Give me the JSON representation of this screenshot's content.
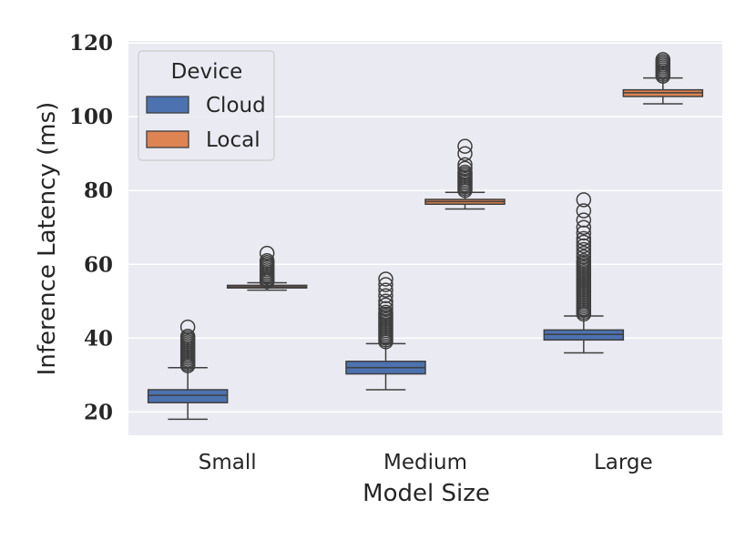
{
  "chart_data": {
    "type": "box",
    "xlabel": "Model Size",
    "ylabel": "Inference Latency (ms)",
    "ylim": [
      13,
      120
    ],
    "yticks": [
      20,
      40,
      60,
      80,
      100,
      120
    ],
    "categories": [
      "Small",
      "Medium",
      "Large"
    ],
    "grid": true,
    "legend": {
      "title": "Device",
      "placement": "top-left"
    },
    "series": [
      {
        "name": "Cloud",
        "color": "#4c72b0",
        "boxes": [
          {
            "category": "Small",
            "whisker_low": 18,
            "q1": 22.5,
            "median": 24.5,
            "q3": 26,
            "whisker_high": 32,
            "outliers": [
              32.5,
              33,
              33.5,
              34,
              34.5,
              35,
              35.5,
              36,
              36.5,
              37,
              37.5,
              38,
              38.5,
              39,
              39.5,
              40,
              40.5,
              43
            ]
          },
          {
            "category": "Medium",
            "whisker_low": 26,
            "q1": 30.3,
            "median": 32,
            "q3": 33.7,
            "whisker_high": 38.5,
            "outliers": [
              39,
              39.5,
              40,
              40.5,
              41,
              41.5,
              42,
              42.5,
              43,
              43.5,
              44,
              44.5,
              45,
              45.5,
              46,
              46.5,
              47,
              48,
              49,
              50,
              51.5,
              53,
              54.5,
              56
            ]
          },
          {
            "category": "Large",
            "whisker_low": 36,
            "q1": 39.5,
            "median": 41,
            "q3": 42.2,
            "whisker_high": 46,
            "outliers": [
              46.5,
              47,
              47.5,
              48,
              48.5,
              49,
              49.5,
              50,
              50.5,
              51,
              51.5,
              52,
              52.5,
              53,
              53.5,
              54,
              54.5,
              55,
              55.5,
              56,
              56.5,
              57,
              57.5,
              58,
              58.5,
              59,
              59.5,
              60,
              60.5,
              61,
              62,
              63,
              64,
              65,
              66,
              67,
              68.5,
              70,
              72,
              74.5,
              77.5
            ]
          }
        ]
      },
      {
        "name": "Local",
        "color": "#dd8452",
        "boxes": [
          {
            "category": "Small",
            "whisker_low": 53,
            "q1": 53.6,
            "median": 53.9,
            "q3": 54.3,
            "whisker_high": 55,
            "outliers": [
              55.3,
              55.7,
              56,
              56.5,
              57,
              57.5,
              58,
              58.5,
              59,
              59.5,
              60,
              60.5,
              61,
              63
            ]
          },
          {
            "category": "Medium",
            "whisker_low": 75,
            "q1": 76.3,
            "median": 77,
            "q3": 77.6,
            "whisker_high": 79.5,
            "outliers": [
              80,
              80.5,
              81,
              81.5,
              82,
              82.5,
              83,
              83.5,
              84,
              84.5,
              85,
              86,
              87,
              90,
              92
            ]
          },
          {
            "category": "Large",
            "whisker_low": 103.5,
            "q1": 105.5,
            "median": 106.5,
            "q3": 107.3,
            "whisker_high": 110.5,
            "outliers": [
              111,
              111.5,
              112,
              112.5,
              113,
              113.5,
              114,
              114.5,
              115,
              115.5
            ]
          }
        ]
      }
    ]
  }
}
